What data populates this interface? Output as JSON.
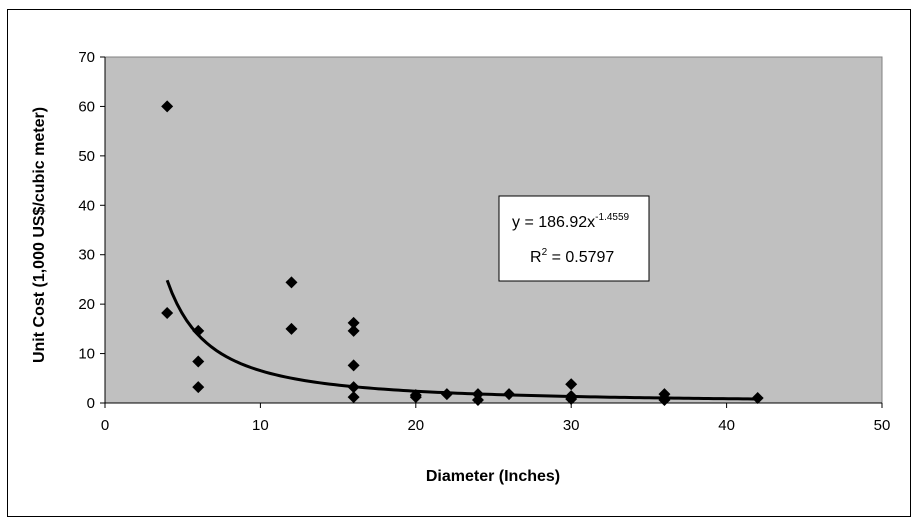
{
  "chart_data": {
    "type": "scatter",
    "title": "",
    "xlabel": "Diameter (Inches)",
    "ylabel": "Unit Cost (1,000 US$/cubic meter)",
    "xlim": [
      0,
      50
    ],
    "ylim": [
      0,
      70
    ],
    "x_ticks": [
      "0",
      "10",
      "20",
      "30",
      "40",
      "50"
    ],
    "y_ticks": [
      "0",
      "10",
      "20",
      "30",
      "40",
      "50",
      "60",
      "70"
    ],
    "grid": false,
    "plot_background": "#c0c0c0",
    "marker": "diamond",
    "marker_color": "#000000",
    "series": [
      {
        "points": [
          {
            "x": 4,
            "y": 60
          },
          {
            "x": 4,
            "y": 18.2
          },
          {
            "x": 6,
            "y": 14.6
          },
          {
            "x": 6,
            "y": 8.4
          },
          {
            "x": 6,
            "y": 3.2
          },
          {
            "x": 12,
            "y": 24.4
          },
          {
            "x": 12,
            "y": 15
          },
          {
            "x": 16,
            "y": 16.2
          },
          {
            "x": 16,
            "y": 14.6
          },
          {
            "x": 16,
            "y": 7.6
          },
          {
            "x": 16,
            "y": 3.2
          },
          {
            "x": 16,
            "y": 1.2
          },
          {
            "x": 20,
            "y": 1.6
          },
          {
            "x": 20,
            "y": 1.2
          },
          {
            "x": 22,
            "y": 1.8
          },
          {
            "x": 24,
            "y": 1.8
          },
          {
            "x": 24,
            "y": 0.6
          },
          {
            "x": 26,
            "y": 1.8
          },
          {
            "x": 30,
            "y": 3.8
          },
          {
            "x": 30,
            "y": 1.4
          },
          {
            "x": 30,
            "y": 0.8
          },
          {
            "x": 36,
            "y": 1.8
          },
          {
            "x": 36,
            "y": 1.0
          },
          {
            "x": 36,
            "y": 0.6
          },
          {
            "x": 42,
            "y": 1.0
          }
        ]
      }
    ],
    "trendline": {
      "type": "power",
      "coefficient": 186.92,
      "exponent": -1.4559,
      "x_range": [
        4,
        42
      ],
      "equation_base": "y = 186.92x",
      "equation_exponent": "-1.4559",
      "r2_label": "R",
      "r2_exponent": "2",
      "r2_value": " = 0.5797"
    }
  }
}
